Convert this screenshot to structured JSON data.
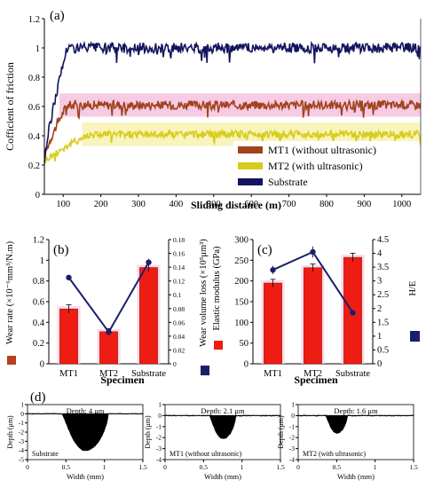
{
  "chart_data": [
    {
      "panel": "(a)",
      "type": "line",
      "xlabel": "Sliding distance (m)",
      "ylabel": "Cofficient of friction",
      "xlim": [
        50,
        1050
      ],
      "ylim": [
        0,
        1.2
      ],
      "xticks": [
        100,
        200,
        300,
        400,
        500,
        600,
        700,
        800,
        900,
        1000
      ],
      "yticks": [
        0,
        0.2,
        0.4,
        0.6,
        0.8,
        1,
        1.2
      ],
      "yticklabels": [
        "0",
        "0.2",
        "0.4",
        "0.6",
        "0.8",
        "1",
        "1.2"
      ],
      "legend_position": "bottom-right",
      "series": [
        {
          "name": "MT1 (without ultrasonic)",
          "color": "#a0441d",
          "band": "#f6b9dc",
          "start": 0.25,
          "level": 0.61,
          "rise_to": 110,
          "noise": 0.03
        },
        {
          "name": "MT2 (with ultrasonic)",
          "color": "#d8cc1c",
          "band": "#f6f0a6",
          "start": 0.22,
          "level": 0.41,
          "rise_to": 170,
          "noise": 0.025
        },
        {
          "name": "Substrate",
          "color": "#14145e",
          "band": null,
          "start": 0.22,
          "level": 1.0,
          "rise_to": 110,
          "noise": 0.035
        }
      ]
    },
    {
      "panel": "(b)",
      "type": "bar",
      "xlabel": "Specimen",
      "ylabel_left": "Wear rate (×10⁻⁶mm³/N.m)",
      "ylabel_right": "Wear volume loss (×10⁵μm³)",
      "categories": [
        "MT1",
        "MT2",
        "Substrate"
      ],
      "ylim_left": [
        0,
        1.2
      ],
      "yticks_left": [
        "0",
        "0.2",
        "0.4",
        "0.6",
        "0.8",
        "1",
        "1.2"
      ],
      "ylim_right": [
        0,
        0.18
      ],
      "yticks_right": [
        "0",
        "0.02",
        "0.04",
        "0.06",
        "0.08",
        "0.1",
        "0.12",
        "0.14",
        "0.16",
        "0.18"
      ],
      "bars": {
        "values": [
          0.53,
          0.31,
          0.93
        ],
        "errors": [
          0.04,
          0.03,
          0.04
        ],
        "color": "#ee1c12"
      },
      "line": {
        "values": [
          0.125,
          0.046,
          0.147
        ],
        "errors": [
          0.004,
          0.004,
          0.005
        ],
        "color": "#1b1f6b"
      }
    },
    {
      "panel": "(c)",
      "type": "bar",
      "xlabel": "Specimen",
      "ylabel_left": "Elastic modulus (GPa)",
      "ylabel_right": "H/E",
      "categories": [
        "MT1",
        "MT2",
        "Substrate"
      ],
      "ylim_left": [
        0,
        300
      ],
      "yticks_left": [
        "0",
        "50",
        "100",
        "150",
        "200",
        "250",
        "300"
      ],
      "ylim_right": [
        0,
        4.5
      ],
      "yticks_right": [
        "0",
        "0.5",
        "1",
        "1.5",
        "2",
        "2.5",
        "3",
        "3.5",
        "4",
        "4.5"
      ],
      "bars": {
        "values": [
          195,
          232,
          257
        ],
        "errors": [
          9,
          9,
          10
        ],
        "color": "#ee1c12"
      },
      "line": {
        "values": [
          3.4,
          4.05,
          1.85
        ],
        "errors": [
          0.15,
          0.2,
          0.05
        ],
        "color": "#1b1f6b"
      }
    },
    {
      "panel": "(d)",
      "type": "area",
      "xlabel": "Width (mm)",
      "ylabel": "Depth (μm)",
      "xlim": [
        0,
        1.5
      ],
      "xticks": [
        "0",
        "0.5",
        "1",
        "1.5"
      ],
      "profiles": [
        {
          "name": "Substrate",
          "depth_label": "Depth: 4 μm",
          "ylim": [
            -5,
            1
          ],
          "yticks": [
            "-5",
            "-4",
            "-3",
            "-2",
            "-1",
            "0",
            "1"
          ],
          "center": 0.75,
          "halfwidth": 0.3,
          "depth": 4.0
        },
        {
          "name": "MT1 (without ultrasonic)",
          "depth_label": "Depth: 2.1 μm",
          "ylim": [
            -4,
            1
          ],
          "yticks": [
            "-4",
            "-3",
            "-2",
            "-1",
            "0",
            "1"
          ],
          "center": 0.75,
          "halfwidth": 0.17,
          "depth": 2.1
        },
        {
          "name": "MT2 (with ultrasonic)",
          "depth_label": "Depth: 1.6 μm",
          "ylim": [
            -4,
            1
          ],
          "yticks": [
            "-4",
            "-3",
            "-2",
            "-1",
            "0",
            "1"
          ],
          "center": 0.5,
          "halfwidth": 0.14,
          "depth": 1.6
        }
      ]
    }
  ]
}
